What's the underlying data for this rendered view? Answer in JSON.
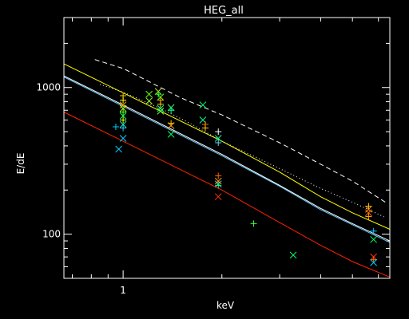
{
  "chart_data": {
    "type": "scatter",
    "title": "HEG_all",
    "xlabel": "keV",
    "ylabel": "E/dE",
    "x_scale": "log",
    "y_scale": "log",
    "xlim": [
      0.66,
      6.5
    ],
    "ylim": [
      50,
      3000
    ],
    "grid": false,
    "background": "#000000",
    "frame_color": "#ffffff",
    "x_major_ticks": [
      {
        "value": 1,
        "label": "1"
      }
    ],
    "x_minor_ticks": [
      0.7,
      0.8,
      0.9,
      2,
      3,
      4,
      5,
      6
    ],
    "y_major_ticks": [
      {
        "value": 100,
        "label": "100"
      },
      {
        "value": 1000,
        "label": "1000"
      }
    ],
    "y_minor_ticks": [
      60,
      70,
      80,
      90,
      200,
      300,
      400,
      500,
      600,
      700,
      800,
      900,
      2000
    ],
    "curves": [
      {
        "color": "#ffffff",
        "dash": "6,4",
        "x": [
          0.82,
          1.0,
          1.5,
          2.0,
          3.0,
          4.0,
          5.0,
          6.3
        ],
        "y": [
          1550,
          1350,
          850,
          650,
          420,
          300,
          230,
          165
        ]
      },
      {
        "color": "#ffffff",
        "dash": "1,3",
        "x": [
          0.85,
          1.0,
          1.3,
          1.6,
          2.0,
          2.5,
          3.0,
          4.0,
          5.0,
          6.3
        ],
        "y": [
          1050,
          930,
          720,
          570,
          430,
          340,
          280,
          205,
          165,
          130
        ]
      },
      {
        "color": "#ffff00",
        "dash": "",
        "x": [
          0.66,
          1.0,
          2.0,
          3.0,
          4.0,
          5.0,
          6.5
        ],
        "y": [
          1450,
          920,
          430,
          265,
          180,
          140,
          108
        ]
      },
      {
        "color": "#ffffff",
        "dash": "",
        "x": [
          0.66,
          1.0,
          2.0,
          3.0,
          4.0,
          5.0,
          6.5
        ],
        "y": [
          1200,
          760,
          350,
          215,
          150,
          118,
          90
        ]
      },
      {
        "color": "#66ccff",
        "dash": "",
        "x": [
          0.66,
          1.0,
          2.0,
          3.0,
          4.0,
          5.0,
          6.5
        ],
        "y": [
          1180,
          745,
          343,
          212,
          147,
          116,
          88
        ]
      },
      {
        "color": "#ff2200",
        "dash": "",
        "x": [
          0.66,
          1.0,
          2.0,
          3.0,
          4.0,
          5.0,
          6.5
        ],
        "y": [
          680,
          430,
          200,
          120,
          84,
          65,
          51
        ]
      }
    ],
    "points": [
      {
        "x": 0.95,
        "y": 540,
        "marker": "plus",
        "color": "#00ccff"
      },
      {
        "x": 0.97,
        "y": 380,
        "marker": "x",
        "color": "#00ccff"
      },
      {
        "x": 1.0,
        "y": 880,
        "marker": "plus",
        "color": "#ffcc00"
      },
      {
        "x": 1.0,
        "y": 820,
        "marker": "plus",
        "color": "#ffff00"
      },
      {
        "x": 1.0,
        "y": 760,
        "marker": "x",
        "color": "#ff9900"
      },
      {
        "x": 1.0,
        "y": 720,
        "marker": "x",
        "color": "#99ff00"
      },
      {
        "x": 1.0,
        "y": 680,
        "marker": "plus",
        "color": "#66ff33"
      },
      {
        "x": 1.0,
        "y": 640,
        "marker": "x",
        "color": "#00ff66"
      },
      {
        "x": 1.0,
        "y": 600,
        "marker": "plus",
        "color": "#ffff00"
      },
      {
        "x": 1.0,
        "y": 560,
        "marker": "x",
        "color": "#00ffcc"
      },
      {
        "x": 1.0,
        "y": 530,
        "marker": "plus",
        "color": "#33ccff"
      },
      {
        "x": 1.0,
        "y": 450,
        "marker": "x",
        "color": "#00ccff"
      },
      {
        "x": 1.2,
        "y": 900,
        "marker": "x",
        "color": "#66ff00"
      },
      {
        "x": 1.2,
        "y": 810,
        "marker": "x",
        "color": "#99ff33"
      },
      {
        "x": 1.28,
        "y": 940,
        "marker": "x",
        "color": "#ccff00"
      },
      {
        "x": 1.28,
        "y": 900,
        "marker": "plus",
        "color": "#00ff66"
      },
      {
        "x": 1.3,
        "y": 860,
        "marker": "x",
        "color": "#66ff00"
      },
      {
        "x": 1.3,
        "y": 820,
        "marker": "plus",
        "color": "#ff9900"
      },
      {
        "x": 1.3,
        "y": 770,
        "marker": "plus",
        "color": "#ffcc00"
      },
      {
        "x": 1.3,
        "y": 720,
        "marker": "x",
        "color": "#00ff99"
      },
      {
        "x": 1.3,
        "y": 690,
        "marker": "x",
        "color": "#66ff33"
      },
      {
        "x": 1.4,
        "y": 730,
        "marker": "x",
        "color": "#33ff66"
      },
      {
        "x": 1.4,
        "y": 700,
        "marker": "plus",
        "color": "#00ff99"
      },
      {
        "x": 1.4,
        "y": 570,
        "marker": "plus",
        "color": "#ffcc00"
      },
      {
        "x": 1.4,
        "y": 550,
        "marker": "x",
        "color": "#ff9900"
      },
      {
        "x": 1.4,
        "y": 480,
        "marker": "x",
        "color": "#00ff66"
      },
      {
        "x": 1.75,
        "y": 760,
        "marker": "x",
        "color": "#00ff66"
      },
      {
        "x": 1.75,
        "y": 600,
        "marker": "x",
        "color": "#00ff99"
      },
      {
        "x": 1.78,
        "y": 560,
        "marker": "plus",
        "color": "#ff6600"
      },
      {
        "x": 1.78,
        "y": 530,
        "marker": "plus",
        "color": "#ffcc00"
      },
      {
        "x": 1.95,
        "y": 500,
        "marker": "plus",
        "color": "#ffffff"
      },
      {
        "x": 1.95,
        "y": 450,
        "marker": "x",
        "color": "#00ff99"
      },
      {
        "x": 1.95,
        "y": 420,
        "marker": "plus",
        "color": "#66ccff"
      },
      {
        "x": 1.95,
        "y": 250,
        "marker": "plus",
        "color": "#ff6600"
      },
      {
        "x": 1.95,
        "y": 230,
        "marker": "x",
        "color": "#ff9900"
      },
      {
        "x": 1.95,
        "y": 220,
        "marker": "x",
        "color": "#66ccff"
      },
      {
        "x": 1.95,
        "y": 215,
        "marker": "plus",
        "color": "#00ff66"
      },
      {
        "x": 1.95,
        "y": 180,
        "marker": "x",
        "color": "#ff3300"
      },
      {
        "x": 2.5,
        "y": 118,
        "marker": "plus",
        "color": "#33ff33"
      },
      {
        "x": 3.3,
        "y": 72,
        "marker": "x",
        "color": "#00ff66"
      },
      {
        "x": 5.6,
        "y": 155,
        "marker": "plus",
        "color": "#ffcc00"
      },
      {
        "x": 5.6,
        "y": 148,
        "marker": "x",
        "color": "#ff9900"
      },
      {
        "x": 5.6,
        "y": 140,
        "marker": "x",
        "color": "#ff6600"
      },
      {
        "x": 5.6,
        "y": 132,
        "marker": "plus",
        "color": "#ff9900"
      },
      {
        "x": 5.8,
        "y": 105,
        "marker": "plus",
        "color": "#00ccff"
      },
      {
        "x": 5.8,
        "y": 92,
        "marker": "x",
        "color": "#00ff66"
      },
      {
        "x": 5.8,
        "y": 70,
        "marker": "x",
        "color": "#ff3300"
      },
      {
        "x": 5.8,
        "y": 67,
        "marker": "plus",
        "color": "#ff6600"
      },
      {
        "x": 5.8,
        "y": 64,
        "marker": "x",
        "color": "#00ccff"
      }
    ]
  }
}
